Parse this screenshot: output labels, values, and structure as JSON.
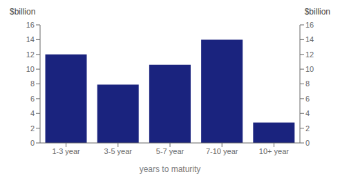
{
  "chart_data": {
    "type": "bar",
    "categories": [
      "1-3 year",
      "3-5 year",
      "5-7 year",
      "7-10 year",
      "10+ year"
    ],
    "values": [
      12.0,
      7.9,
      10.6,
      14.0,
      2.75
    ],
    "color": "#1a237e",
    "xlabel": "years to maturity",
    "ylabel": "$billion",
    "y2label": "$billion",
    "ylim": [
      0,
      16
    ],
    "yticks": [
      0,
      2,
      4,
      6,
      8,
      10,
      12,
      14,
      16
    ],
    "y2lim": [
      0,
      16
    ],
    "y2ticks": [
      0,
      2,
      4,
      6,
      8,
      10,
      12,
      14,
      16
    ],
    "grid": false
  }
}
